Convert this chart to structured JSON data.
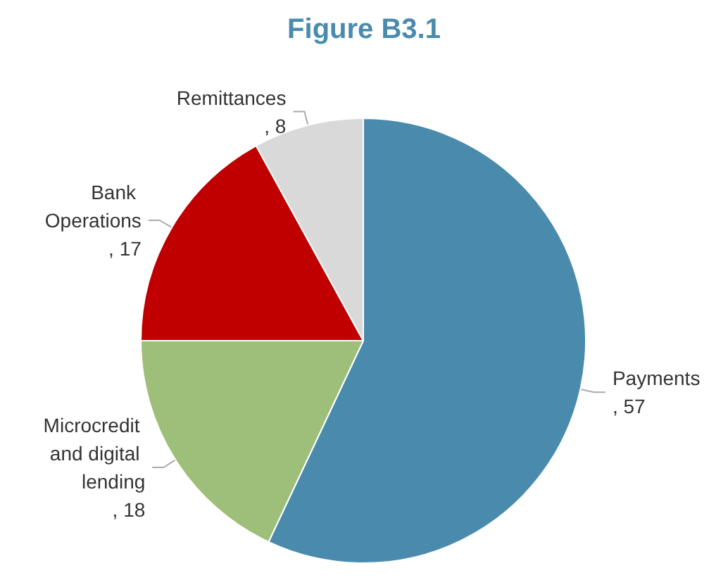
{
  "chart_data": {
    "type": "pie",
    "title": "Figure B3.1",
    "categories": [
      "Payments",
      "Microcredit and digital lending",
      "Bank Operations",
      "Remittances"
    ],
    "values": [
      57,
      18,
      17,
      8
    ],
    "value_labels": [
      ", 57",
      ", 18",
      ", 17",
      ", 8"
    ],
    "colors": [
      "#4a8bad",
      "#9dbf7a",
      "#c00000",
      "#d9d9d9"
    ],
    "legend": false
  }
}
